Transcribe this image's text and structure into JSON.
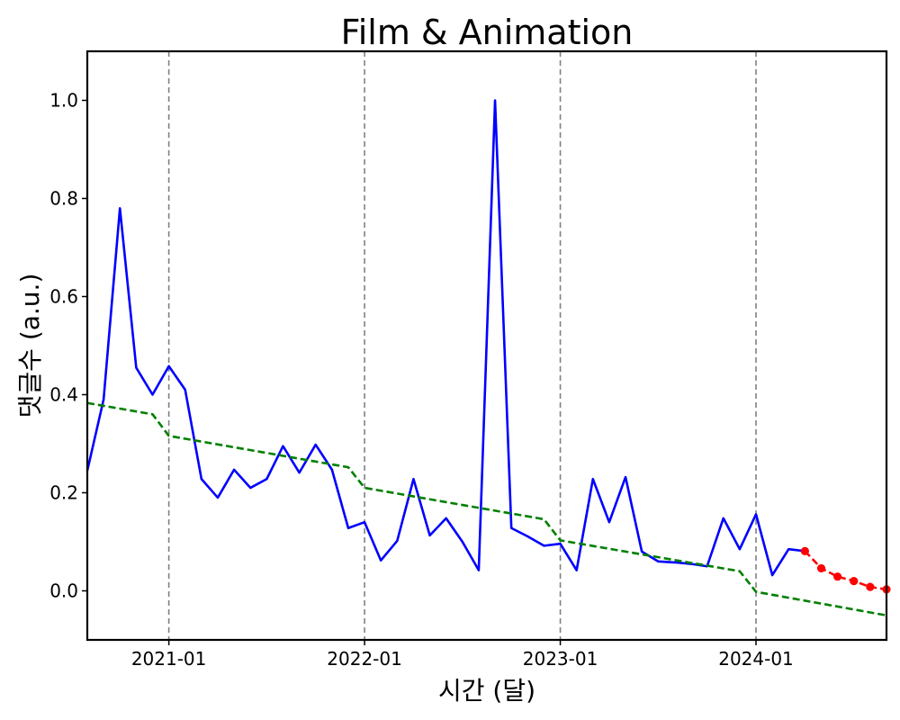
{
  "chart_data": {
    "type": "line",
    "title": "Film & Animation",
    "xlabel": "시간 (달)",
    "ylabel": "댓글수 (a.u.)",
    "xlim": [
      "2020-08",
      "2024-09"
    ],
    "ylim": [
      -0.1,
      1.1
    ],
    "yticks": [
      0.0,
      0.2,
      0.4,
      0.6,
      0.8,
      1.0
    ],
    "ytick_labels": [
      "0.0",
      "0.2",
      "0.4",
      "0.6",
      "0.8",
      "1.0"
    ],
    "xticks": [
      "2021-01",
      "2022-01",
      "2023-01",
      "2024-01"
    ],
    "xtick_labels": [
      "2021-01",
      "2022-01",
      "2023-01",
      "2024-01"
    ],
    "year_markers": [
      "2021-01",
      "2022-01",
      "2023-01",
      "2024-01"
    ],
    "grid": false,
    "legend": "none",
    "series": [
      {
        "style": "solid",
        "color": "#0000ff",
        "x": [
          "2020-08",
          "2020-09",
          "2020-10",
          "2020-11",
          "2020-12",
          "2021-01",
          "2021-02",
          "2021-03",
          "2021-04",
          "2021-05",
          "2021-06",
          "2021-07",
          "2021-08",
          "2021-09",
          "2021-10",
          "2021-11",
          "2021-12",
          "2022-01",
          "2022-02",
          "2022-03",
          "2022-04",
          "2022-05",
          "2022-06",
          "2022-07",
          "2022-08",
          "2022-09",
          "2022-10",
          "2022-11",
          "2022-12",
          "2023-01",
          "2023-02",
          "2023-03",
          "2023-04",
          "2023-05",
          "2023-06",
          "2023-07",
          "2023-08",
          "2023-09",
          "2023-10",
          "2023-11",
          "2023-12",
          "2024-01",
          "2024-02",
          "2024-03",
          "2024-04"
        ],
        "y": [
          0.245,
          0.39,
          0.78,
          0.455,
          0.4,
          0.458,
          0.41,
          0.228,
          0.19,
          0.247,
          0.21,
          0.228,
          0.295,
          0.241,
          0.298,
          0.247,
          0.128,
          0.14,
          0.062,
          0.102,
          0.228,
          0.113,
          0.148,
          0.1,
          0.042,
          1.0,
          0.128,
          0.111,
          0.092,
          0.096,
          0.042,
          0.228,
          0.14,
          0.232,
          0.08,
          0.06,
          0.058,
          0.055,
          0.05,
          0.148,
          0.085,
          0.156,
          0.032,
          0.085,
          0.081
        ]
      },
      {
        "style": "dashed",
        "color": "#008000",
        "x": [
          "2020-08",
          "2020-12",
          "2021-01",
          "2021-12",
          "2022-01",
          "2022-12",
          "2023-01",
          "2023-12",
          "2024-01",
          "2024-09"
        ],
        "y": [
          0.383,
          0.36,
          0.316,
          0.252,
          0.21,
          0.146,
          0.103,
          0.04,
          -0.002,
          -0.05
        ]
      },
      {
        "style": "dashed-markers",
        "color": "#ff0000",
        "x": [
          "2024-04",
          "2024-05",
          "2024-06",
          "2024-07",
          "2024-08",
          "2024-09"
        ],
        "y": [
          0.081,
          0.046,
          0.029,
          0.02,
          0.008,
          0.003
        ]
      }
    ]
  }
}
